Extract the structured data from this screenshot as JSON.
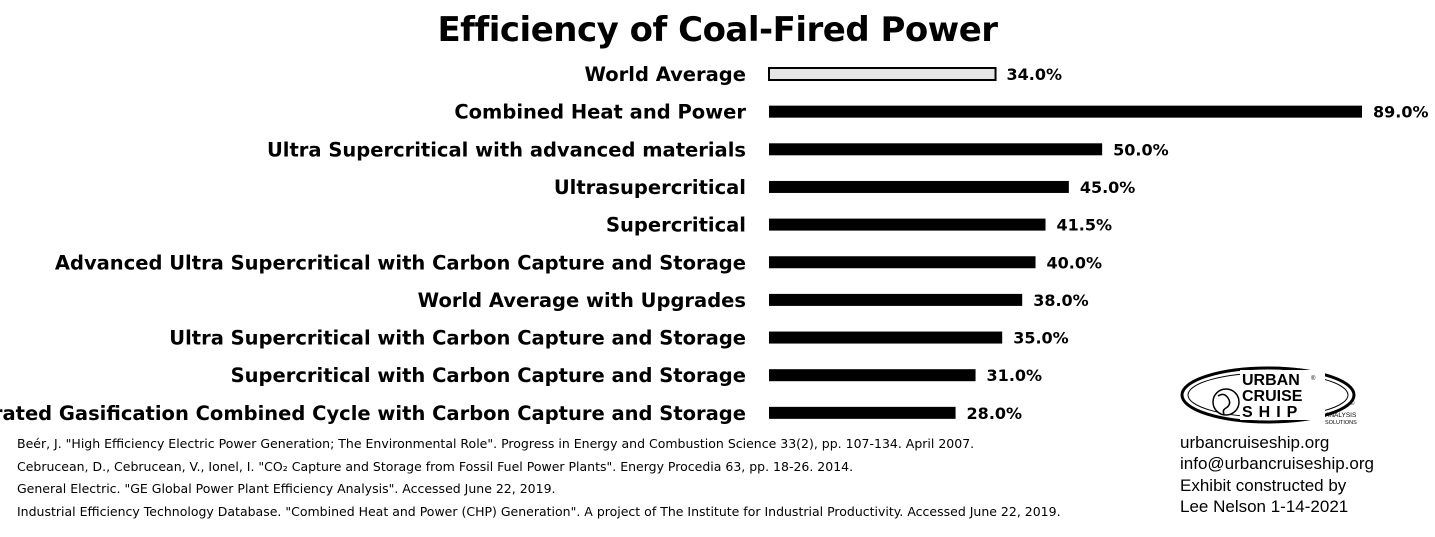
{
  "chart_data": {
    "type": "bar",
    "orientation": "horizontal",
    "title": "Efficiency of Coal-Fired Power",
    "categories": [
      "World Average",
      "Combined Heat and Power",
      "Ultra Supercritical with advanced materials",
      "Ultrasupercritical",
      "Supercritical",
      "Advanced Ultra Supercritical with Carbon Capture and Storage",
      "World Average with Upgrades",
      "Ultra Supercritical with Carbon Capture and Storage",
      "Supercritical with Carbon Capture and Storage",
      "Integrated Gasification Combined Cycle with Carbon Capture and Storage"
    ],
    "values": [
      34.0,
      89.0,
      50.0,
      45.0,
      41.5,
      40.0,
      38.0,
      35.0,
      31.0,
      28.0
    ],
    "value_labels": [
      "34.0%",
      "89.0%",
      "50.0%",
      "45.0%",
      "41.5%",
      "40.0%",
      "38.0%",
      "35.0%",
      "31.0%",
      "28.0%"
    ],
    "highlight_index": 0,
    "xlim": [
      0,
      89
    ],
    "grid": false,
    "colors": {
      "bar": "#000000",
      "highlight_fill": "#e6e6e6",
      "highlight_stroke": "#000000"
    }
  },
  "references": [
    "Beér, J. \"High Efficiency Electric Power Generation; The Environmental Role\". Progress in Energy and Combustion Science 33(2), pp. 107-134. April 2007.",
    "Cebrucean, D., Cebrucean, V., Ionel, I. \"CO₂ Capture and Storage from Fossil Fuel Power Plants\". Energy Procedia 63, pp. 18-26. 2014.",
    "General Electric. \"GE Global Power Plant Efficiency Analysis\". Accessed June 22, 2019.",
    "Industrial Efficiency Technology Database. \"Combined Heat and Power (CHP) Generation\". A project of The Institute for Industrial Productivity. Accessed June 22, 2019."
  ],
  "logo": {
    "line1": "URBAN",
    "line2": "CRUISE",
    "line3": "SHIP",
    "tag1": "ANALYSIS",
    "tag2": "SOLUTIONS",
    "mark": "®",
    "mark2": "©"
  },
  "credit": {
    "website": "urbancruiseship.org",
    "email": "info@urbancruiseship.org",
    "line3": "Exhibit constructed by",
    "line4": "Lee Nelson 1-14-2021"
  }
}
